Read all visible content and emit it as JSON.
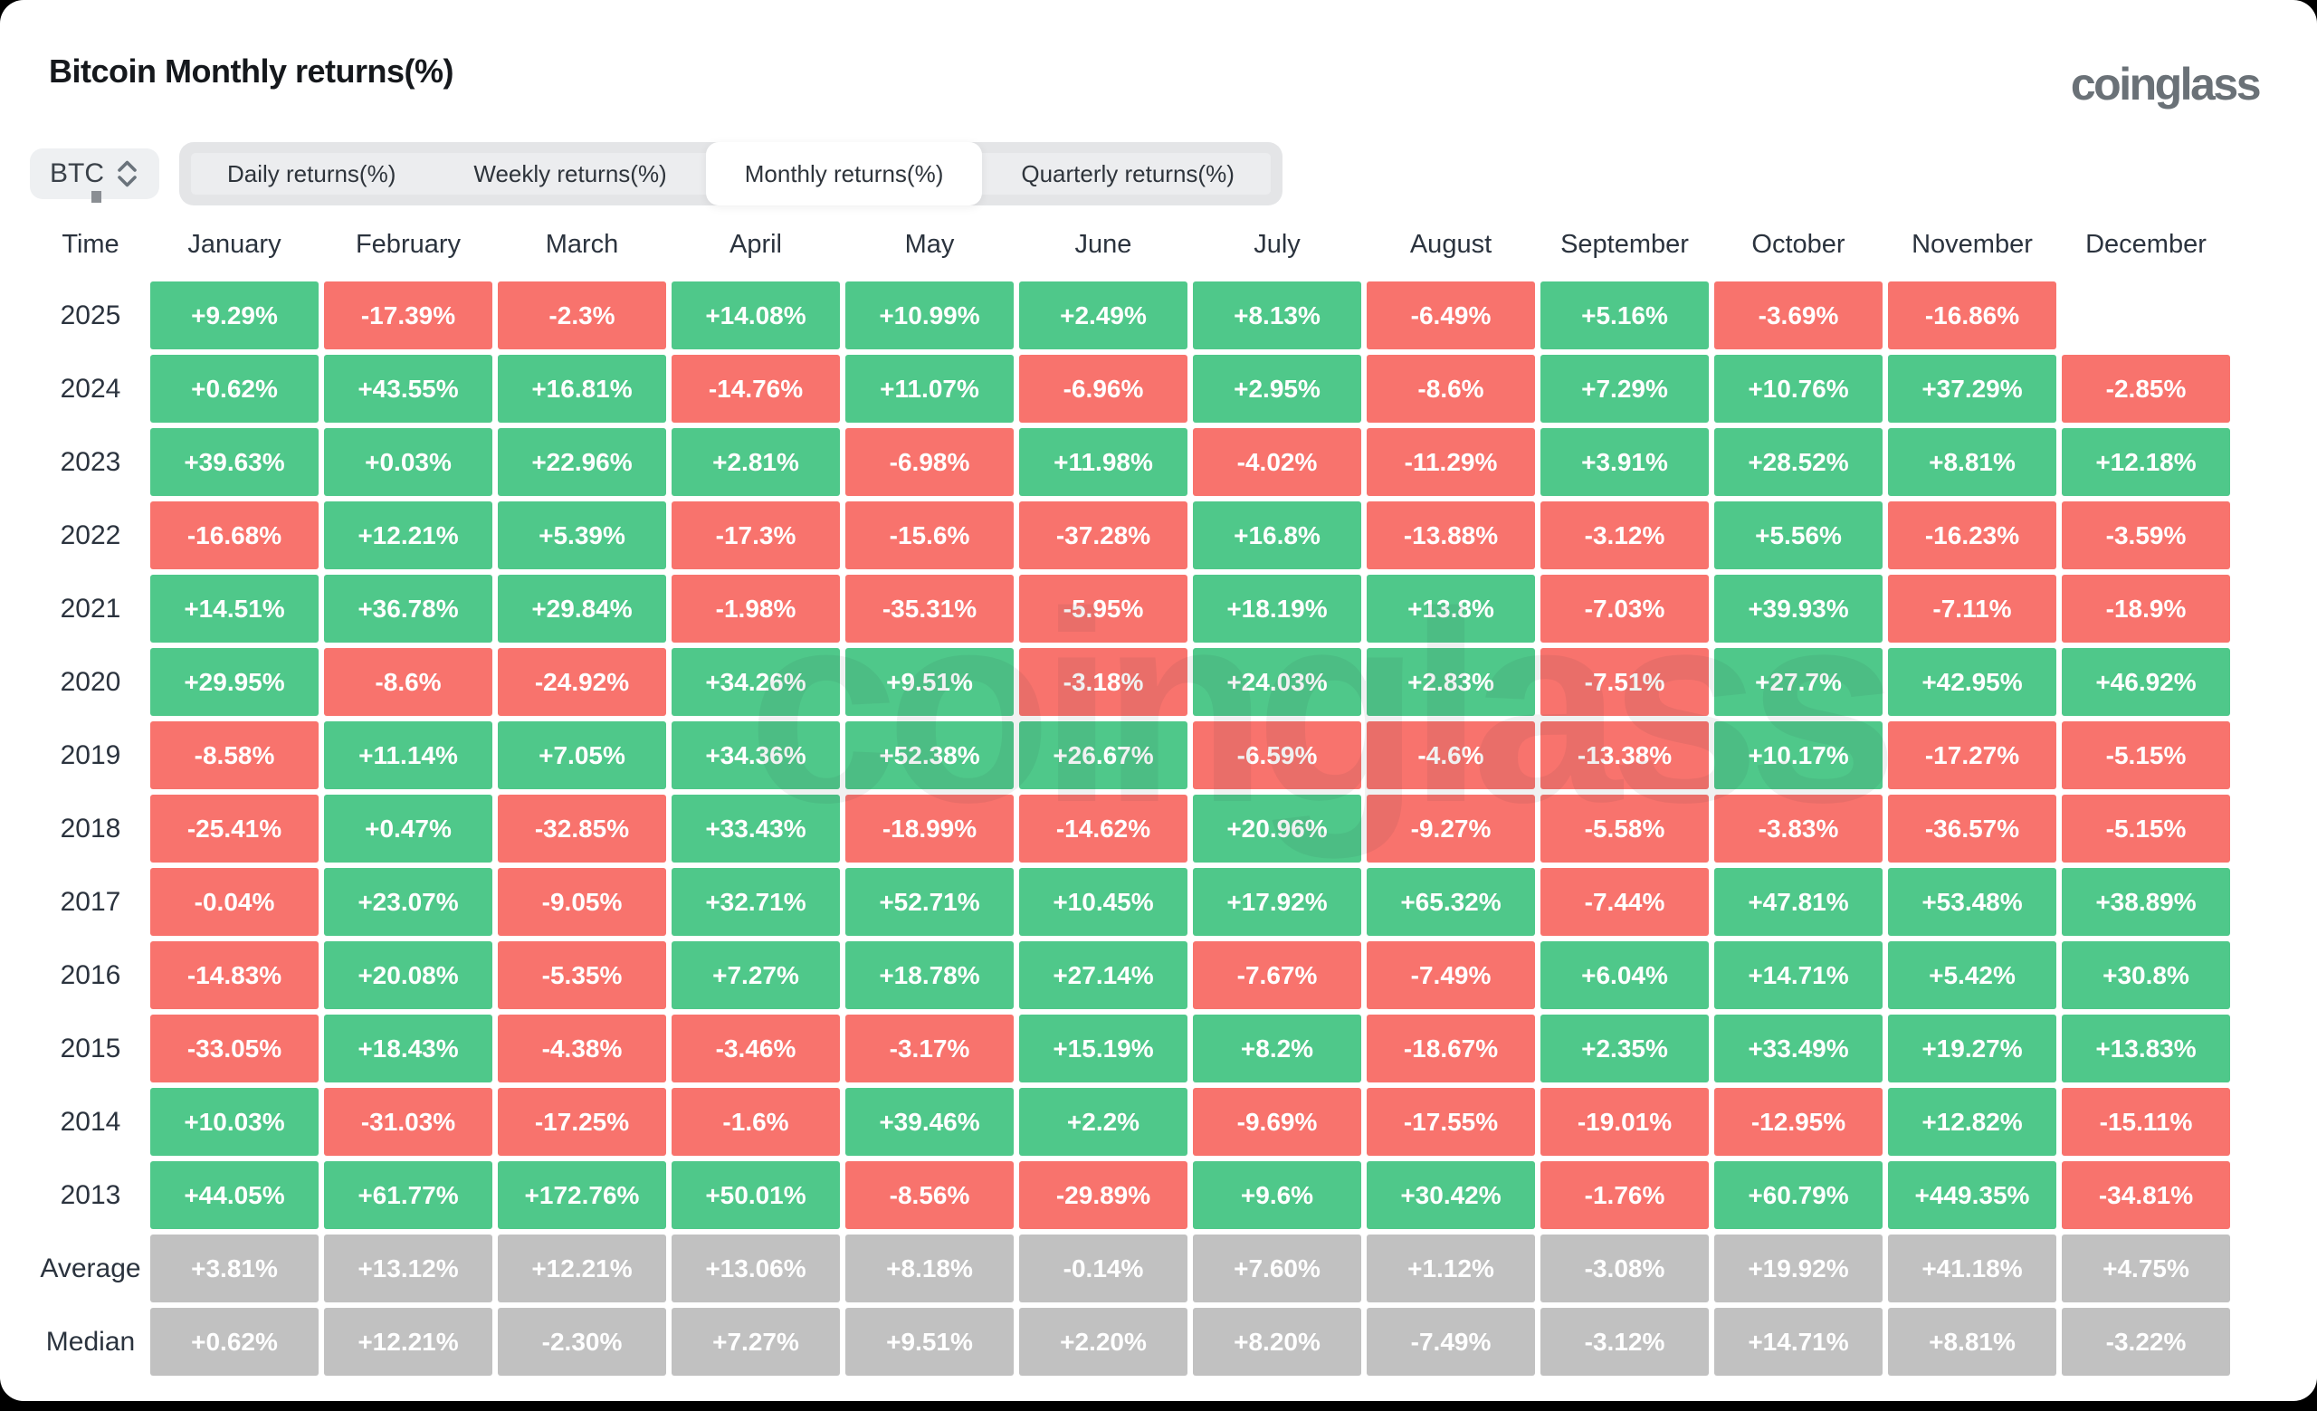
{
  "header": {
    "title": "Bitcoin Monthly returns(%)",
    "logo_text": "coinglass",
    "watermark": "coinglass"
  },
  "controls": {
    "symbol": "BTC",
    "tabs": [
      {
        "label": "Daily returns(%)",
        "active": false
      },
      {
        "label": "Weekly returns(%)",
        "active": false
      },
      {
        "label": "Monthly returns(%)",
        "active": true
      },
      {
        "label": "Quarterly returns(%)",
        "active": false
      }
    ]
  },
  "colors": {
    "positive": "#4fc88a",
    "negative": "#f8736d",
    "neutral": "#c1c1c1"
  },
  "chart_data": {
    "type": "heatmap",
    "title": "Bitcoin Monthly returns(%)",
    "time_header": "Time",
    "months": [
      "January",
      "February",
      "March",
      "April",
      "May",
      "June",
      "July",
      "August",
      "September",
      "October",
      "November",
      "December"
    ],
    "rows": [
      {
        "label": "2025",
        "style": "signed",
        "values": [
          "+9.29%",
          "-17.39%",
          "-2.3%",
          "+14.08%",
          "+10.99%",
          "+2.49%",
          "+8.13%",
          "-6.49%",
          "+5.16%",
          "-3.69%",
          "-16.86%",
          null
        ]
      },
      {
        "label": "2024",
        "style": "signed",
        "values": [
          "+0.62%",
          "+43.55%",
          "+16.81%",
          "-14.76%",
          "+11.07%",
          "-6.96%",
          "+2.95%",
          "-8.6%",
          "+7.29%",
          "+10.76%",
          "+37.29%",
          "-2.85%"
        ]
      },
      {
        "label": "2023",
        "style": "signed",
        "values": [
          "+39.63%",
          "+0.03%",
          "+22.96%",
          "+2.81%",
          "-6.98%",
          "+11.98%",
          "-4.02%",
          "-11.29%",
          "+3.91%",
          "+28.52%",
          "+8.81%",
          "+12.18%"
        ]
      },
      {
        "label": "2022",
        "style": "signed",
        "values": [
          "-16.68%",
          "+12.21%",
          "+5.39%",
          "-17.3%",
          "-15.6%",
          "-37.28%",
          "+16.8%",
          "-13.88%",
          "-3.12%",
          "+5.56%",
          "-16.23%",
          "-3.59%"
        ]
      },
      {
        "label": "2021",
        "style": "signed",
        "values": [
          "+14.51%",
          "+36.78%",
          "+29.84%",
          "-1.98%",
          "-35.31%",
          "-5.95%",
          "+18.19%",
          "+13.8%",
          "-7.03%",
          "+39.93%",
          "-7.11%",
          "-18.9%"
        ]
      },
      {
        "label": "2020",
        "style": "signed",
        "values": [
          "+29.95%",
          "-8.6%",
          "-24.92%",
          "+34.26%",
          "+9.51%",
          "-3.18%",
          "+24.03%",
          "+2.83%",
          "-7.51%",
          "+27.7%",
          "+42.95%",
          "+46.92%"
        ]
      },
      {
        "label": "2019",
        "style": "signed",
        "values": [
          "-8.58%",
          "+11.14%",
          "+7.05%",
          "+34.36%",
          "+52.38%",
          "+26.67%",
          "-6.59%",
          "-4.6%",
          "-13.38%",
          "+10.17%",
          "-17.27%",
          "-5.15%"
        ]
      },
      {
        "label": "2018",
        "style": "signed",
        "values": [
          "-25.41%",
          "+0.47%",
          "-32.85%",
          "+33.43%",
          "-18.99%",
          "-14.62%",
          "+20.96%",
          "-9.27%",
          "-5.58%",
          "-3.83%",
          "-36.57%",
          "-5.15%"
        ]
      },
      {
        "label": "2017",
        "style": "signed",
        "values": [
          "-0.04%",
          "+23.07%",
          "-9.05%",
          "+32.71%",
          "+52.71%",
          "+10.45%",
          "+17.92%",
          "+65.32%",
          "-7.44%",
          "+47.81%",
          "+53.48%",
          "+38.89%"
        ]
      },
      {
        "label": "2016",
        "style": "signed",
        "values": [
          "-14.83%",
          "+20.08%",
          "-5.35%",
          "+7.27%",
          "+18.78%",
          "+27.14%",
          "-7.67%",
          "-7.49%",
          "+6.04%",
          "+14.71%",
          "+5.42%",
          "+30.8%"
        ]
      },
      {
        "label": "2015",
        "style": "signed",
        "values": [
          "-33.05%",
          "+18.43%",
          "-4.38%",
          "-3.46%",
          "-3.17%",
          "+15.19%",
          "+8.2%",
          "-18.67%",
          "+2.35%",
          "+33.49%",
          "+19.27%",
          "+13.83%"
        ]
      },
      {
        "label": "2014",
        "style": "signed",
        "values": [
          "+10.03%",
          "-31.03%",
          "-17.25%",
          "-1.6%",
          "+39.46%",
          "+2.2%",
          "-9.69%",
          "-17.55%",
          "-19.01%",
          "-12.95%",
          "+12.82%",
          "-15.11%"
        ]
      },
      {
        "label": "2013",
        "style": "signed",
        "values": [
          "+44.05%",
          "+61.77%",
          "+172.76%",
          "+50.01%",
          "-8.56%",
          "-29.89%",
          "+9.6%",
          "+30.42%",
          "-1.76%",
          "+60.79%",
          "+449.35%",
          "-34.81%"
        ]
      },
      {
        "label": "Average",
        "style": "neutral",
        "values": [
          "+3.81%",
          "+13.12%",
          "+12.21%",
          "+13.06%",
          "+8.18%",
          "-0.14%",
          "+7.60%",
          "+1.12%",
          "-3.08%",
          "+19.92%",
          "+41.18%",
          "+4.75%"
        ]
      },
      {
        "label": "Median",
        "style": "neutral",
        "values": [
          "+0.62%",
          "+12.21%",
          "-2.30%",
          "+7.27%",
          "+9.51%",
          "+2.20%",
          "+8.20%",
          "-7.49%",
          "-3.12%",
          "+14.71%",
          "+8.81%",
          "-3.22%"
        ]
      }
    ]
  }
}
